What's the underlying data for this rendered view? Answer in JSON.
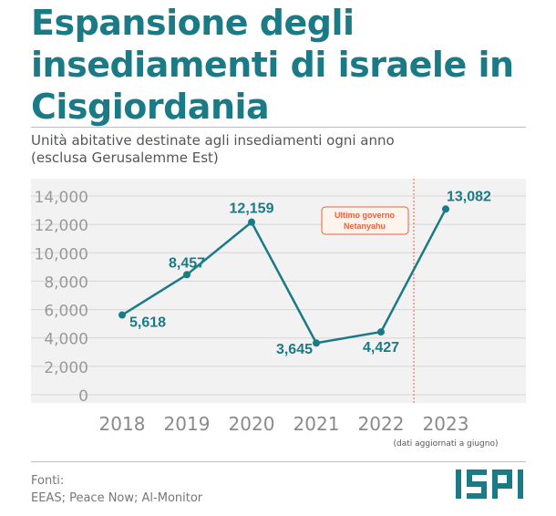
{
  "header": {
    "title": "Espansione degli insediamenti di israele in Cisgiordania",
    "subtitle_line1": "Unità abitative destinate agli insediamenti ogni anno",
    "subtitle_line2": "(esclusa Gerusalemme Est)"
  },
  "chart_data": {
    "type": "line",
    "x": [
      2018,
      2019,
      2020,
      2021,
      2022,
      2023
    ],
    "x_tick_labels": [
      "2018",
      "2019",
      "2020",
      "2021",
      "2022",
      "2023"
    ],
    "x_note": "(dati aggiornati a giugno)",
    "series": [
      {
        "values": [
          5618,
          8457,
          12159,
          3645,
          4427,
          13082
        ],
        "data_labels": [
          "5,618",
          "8,457",
          "12,159",
          "3,645",
          "4,427",
          "13,082"
        ]
      }
    ],
    "ylim": [
      0,
      14000
    ],
    "y_ticks": [
      0,
      2000,
      4000,
      6000,
      8000,
      10000,
      12000,
      14000
    ],
    "y_tick_labels": [
      "0",
      "2,000",
      "4,000",
      "6,000",
      "8,000",
      "10,000",
      "12,000",
      "14,000"
    ],
    "grid": true,
    "annotation": {
      "line1": "Ultimo governo",
      "line2": "Netanyahu",
      "starts_between": [
        2022,
        2023
      ]
    },
    "colors": {
      "line": "#1a7a86",
      "annotation": "#e8613c",
      "grid": "#d6d6d6",
      "background": "#f2f2f2"
    }
  },
  "footer": {
    "sources_label": "Fonti:",
    "sources_text": "EEAS; Peace Now; Al-Monitor",
    "logo_text": "ISPI"
  }
}
